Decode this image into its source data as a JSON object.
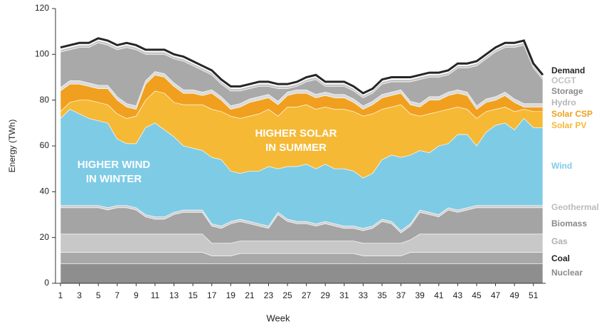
{
  "chart_data": {
    "type": "area",
    "stacked": true,
    "ylabel": "Energy (TWh)",
    "xlabel": "Week",
    "x": [
      1,
      2,
      3,
      4,
      5,
      6,
      7,
      8,
      9,
      10,
      11,
      12,
      13,
      14,
      15,
      16,
      17,
      18,
      19,
      20,
      21,
      22,
      23,
      24,
      25,
      26,
      27,
      28,
      29,
      30,
      31,
      32,
      33,
      34,
      35,
      36,
      37,
      38,
      39,
      40,
      41,
      42,
      43,
      44,
      45,
      46,
      47,
      48,
      49,
      50,
      51,
      52
    ],
    "xlim": [
      1,
      52
    ],
    "xticks": [
      1,
      3,
      5,
      7,
      9,
      11,
      13,
      15,
      17,
      19,
      21,
      23,
      25,
      27,
      29,
      31,
      33,
      35,
      37,
      39,
      41,
      43,
      45,
      47,
      49,
      51
    ],
    "ylim": [
      0,
      120
    ],
    "yticks": [
      0,
      20,
      40,
      60,
      80,
      100,
      120
    ],
    "annotations": [
      [
        "HIGHER WIND",
        "IN WINTER"
      ],
      [
        "HIGHER SOLAR",
        "IN SUMMER"
      ]
    ],
    "series": [
      {
        "name": "Nuclear",
        "color": "#8e8e8e",
        "values": [
          8.5,
          8.5,
          8.5,
          8.5,
          8.5,
          8.5,
          8.5,
          8.5,
          8.5,
          8.5,
          8.5,
          8.5,
          8.5,
          8.5,
          8.5,
          8.5,
          8.5,
          8.5,
          8.5,
          8.5,
          8.5,
          8.5,
          8.5,
          8.5,
          8.5,
          8.5,
          8.5,
          8.5,
          8.5,
          8.5,
          8.5,
          8.5,
          8.5,
          8.5,
          8.5,
          8.5,
          8.5,
          8.5,
          8.5,
          8.5,
          8.5,
          8.5,
          8.5,
          8.5,
          8.5,
          8.5,
          8.5,
          8.5,
          8.5,
          8.5,
          8.5,
          8.5
        ]
      },
      {
        "name": "Coal",
        "color": "#a8a8a8",
        "values": [
          5,
          5,
          5,
          5,
          5,
          5,
          5,
          5,
          5,
          5,
          5,
          5,
          5,
          5,
          5,
          5,
          3.5,
          3.5,
          3.5,
          4.5,
          4.5,
          4.5,
          4.5,
          4.5,
          4.5,
          4.5,
          4.5,
          4.5,
          4.5,
          4.5,
          4.5,
          4.5,
          3.5,
          3.5,
          3.5,
          3.5,
          3.5,
          5,
          5,
          5,
          5,
          5,
          5,
          5,
          5,
          5,
          5,
          5,
          5,
          5,
          5,
          5
        ]
      },
      {
        "name": "Gas",
        "color": "#c8c8c8",
        "values": [
          8,
          8,
          8,
          8,
          8,
          8,
          8,
          8,
          8,
          8,
          8,
          8,
          8,
          8,
          8,
          8,
          5.5,
          5.5,
          5.5,
          5.5,
          5.5,
          5.5,
          5.5,
          5.5,
          5.5,
          5.5,
          5.5,
          5.5,
          5.5,
          5.5,
          5.5,
          5.5,
          5.5,
          5.5,
          5.5,
          5.5,
          5.5,
          5.5,
          8,
          8,
          8,
          8,
          8,
          8,
          8,
          8,
          8,
          8,
          8,
          8,
          8,
          8
        ]
      },
      {
        "name": "Biomass",
        "color": "#a4a4a4",
        "values": [
          11.5,
          11.5,
          11.5,
          11.5,
          11.5,
          10.5,
          11.5,
          11.5,
          10.5,
          7.5,
          6.5,
          6.5,
          8.5,
          9.5,
          9.5,
          9.5,
          7.5,
          6.5,
          8.5,
          8.5,
          7.5,
          6.5,
          5.5,
          11.5,
          8.5,
          7.5,
          7.5,
          6.5,
          7.5,
          6.5,
          5.5,
          5.5,
          5.5,
          6.5,
          9.5,
          8.5,
          4.5,
          6,
          9.5,
          8.5,
          7.5,
          10.5,
          9.5,
          10.5,
          11.5,
          11.5,
          11.5,
          11.5,
          11.5,
          11.5,
          11.5,
          11.5
        ]
      },
      {
        "name": "Geothermal",
        "color": "#d0d0d0",
        "values": [
          1,
          1,
          1,
          1,
          1,
          1,
          1,
          1,
          1,
          1,
          1,
          1,
          1,
          1,
          1,
          1,
          1,
          1,
          1,
          1,
          1,
          1,
          1,
          1,
          1,
          1,
          1,
          1,
          1,
          1,
          1,
          1,
          1,
          1,
          1,
          1,
          1,
          1,
          1,
          1,
          1,
          1,
          1,
          1,
          1,
          1,
          1,
          1,
          1,
          1,
          1,
          1
        ]
      },
      {
        "name": "Wind",
        "color": "#7ecbe6",
        "values": [
          38,
          42,
          40,
          38,
          37,
          37,
          29,
          27,
          28,
          38,
          41,
          38,
          33,
          28,
          27,
          26,
          29,
          29,
          22,
          20,
          22,
          23,
          26,
          19,
          23,
          24,
          25,
          24,
          25,
          24,
          25,
          24,
          22,
          23,
          26,
          29,
          32,
          30,
          26,
          26,
          30,
          28,
          33,
          32,
          26,
          32,
          35,
          36,
          33,
          38,
          34,
          34
        ]
      },
      {
        "name": "Solar PV",
        "color": "#f5b936",
        "values": [
          3,
          3,
          6,
          8,
          8,
          8,
          11,
          11,
          12,
          12,
          14,
          16,
          15,
          18,
          19,
          20,
          21,
          21,
          24,
          24,
          24,
          25,
          25,
          23,
          26,
          26,
          26,
          26,
          25,
          26,
          26,
          26,
          27,
          26,
          22,
          21,
          23,
          18,
          15,
          17,
          15,
          15,
          12,
          11,
          12,
          9,
          7,
          7,
          8,
          4,
          7,
          7
        ]
      },
      {
        "name": "Solar CSP",
        "color": "#f0a01e",
        "values": [
          9,
          8,
          7,
          6,
          6,
          7,
          6,
          5,
          3,
          7,
          7,
          7,
          7,
          5,
          5,
          4,
          7,
          5,
          3,
          5,
          6,
          6,
          5,
          5,
          5,
          6,
          5,
          5,
          5,
          5,
          5,
          4,
          3,
          4,
          5,
          5,
          5,
          4,
          4,
          6,
          5,
          6,
          6,
          6,
          4,
          4,
          4,
          5,
          4,
          1,
          2,
          2
        ]
      },
      {
        "name": "Hydro",
        "color": "#dadada",
        "values": [
          1.5,
          1.5,
          1.5,
          1.5,
          1.5,
          1.5,
          1.5,
          1.5,
          1.5,
          1.5,
          1.5,
          1.5,
          1.5,
          1.5,
          1.5,
          1.5,
          1.5,
          1.5,
          1.5,
          1.5,
          1.5,
          1.5,
          1.5,
          1.5,
          1.5,
          1.5,
          1.5,
          1.5,
          1.5,
          1.5,
          1.5,
          1.5,
          1.5,
          1.5,
          1.5,
          1.5,
          1.5,
          1.5,
          1.5,
          1.5,
          1.5,
          1.5,
          1.5,
          1.5,
          1.5,
          1.5,
          1.5,
          1.5,
          1.5,
          1.5,
          1.5,
          1.5
        ]
      },
      {
        "name": "Storage",
        "color": "#a9a9a9",
        "values": [
          15.5,
          13.5,
          14.5,
          15.5,
          18.5,
          17.5,
          20.5,
          24.5,
          24.5,
          11.5,
          7.5,
          8.5,
          10.5,
          12.5,
          10.5,
          9.5,
          6.5,
          5.5,
          6.5,
          5.5,
          4.5,
          4.5,
          3.5,
          5.5,
          1.5,
          1.5,
          3.5,
          6.5,
          2.5,
          3.5,
          3.5,
          3.5,
          3.5,
          3.5,
          4.5,
          4.5,
          3.5,
          8.5,
          10.5,
          8.5,
          8.5,
          7.5,
          9.5,
          10.5,
          17.5,
          17.5,
          19.5,
          19.5,
          22.5,
          25.5,
          15.5,
          10.5
        ]
      },
      {
        "name": "OCGT",
        "color": "#c6c6c6",
        "values": [
          1,
          1,
          1,
          1,
          1,
          1,
          1,
          1,
          1,
          1,
          1,
          1,
          1,
          1,
          1,
          1,
          1,
          1,
          1,
          1,
          1,
          1,
          1,
          1,
          1,
          1,
          1,
          1,
          1,
          1,
          1,
          1,
          1,
          1,
          1,
          1,
          1,
          1,
          1,
          1,
          1,
          1,
          1,
          1,
          1,
          1,
          1,
          1,
          1,
          1,
          1,
          1
        ]
      }
    ],
    "demand": {
      "name": "Demand",
      "color": "#262626",
      "values": [
        103,
        104,
        105,
        105,
        107,
        106,
        104,
        105,
        104,
        102,
        102,
        102,
        100,
        99,
        97,
        95,
        93,
        89,
        86,
        86,
        87,
        88,
        88,
        87,
        87,
        88,
        90,
        91,
        88,
        88,
        88,
        86,
        83,
        85,
        89,
        90,
        90,
        90,
        91,
        92,
        92,
        93,
        96,
        96,
        97,
        100,
        103,
        105,
        105,
        106,
        96,
        91
      ]
    }
  }
}
